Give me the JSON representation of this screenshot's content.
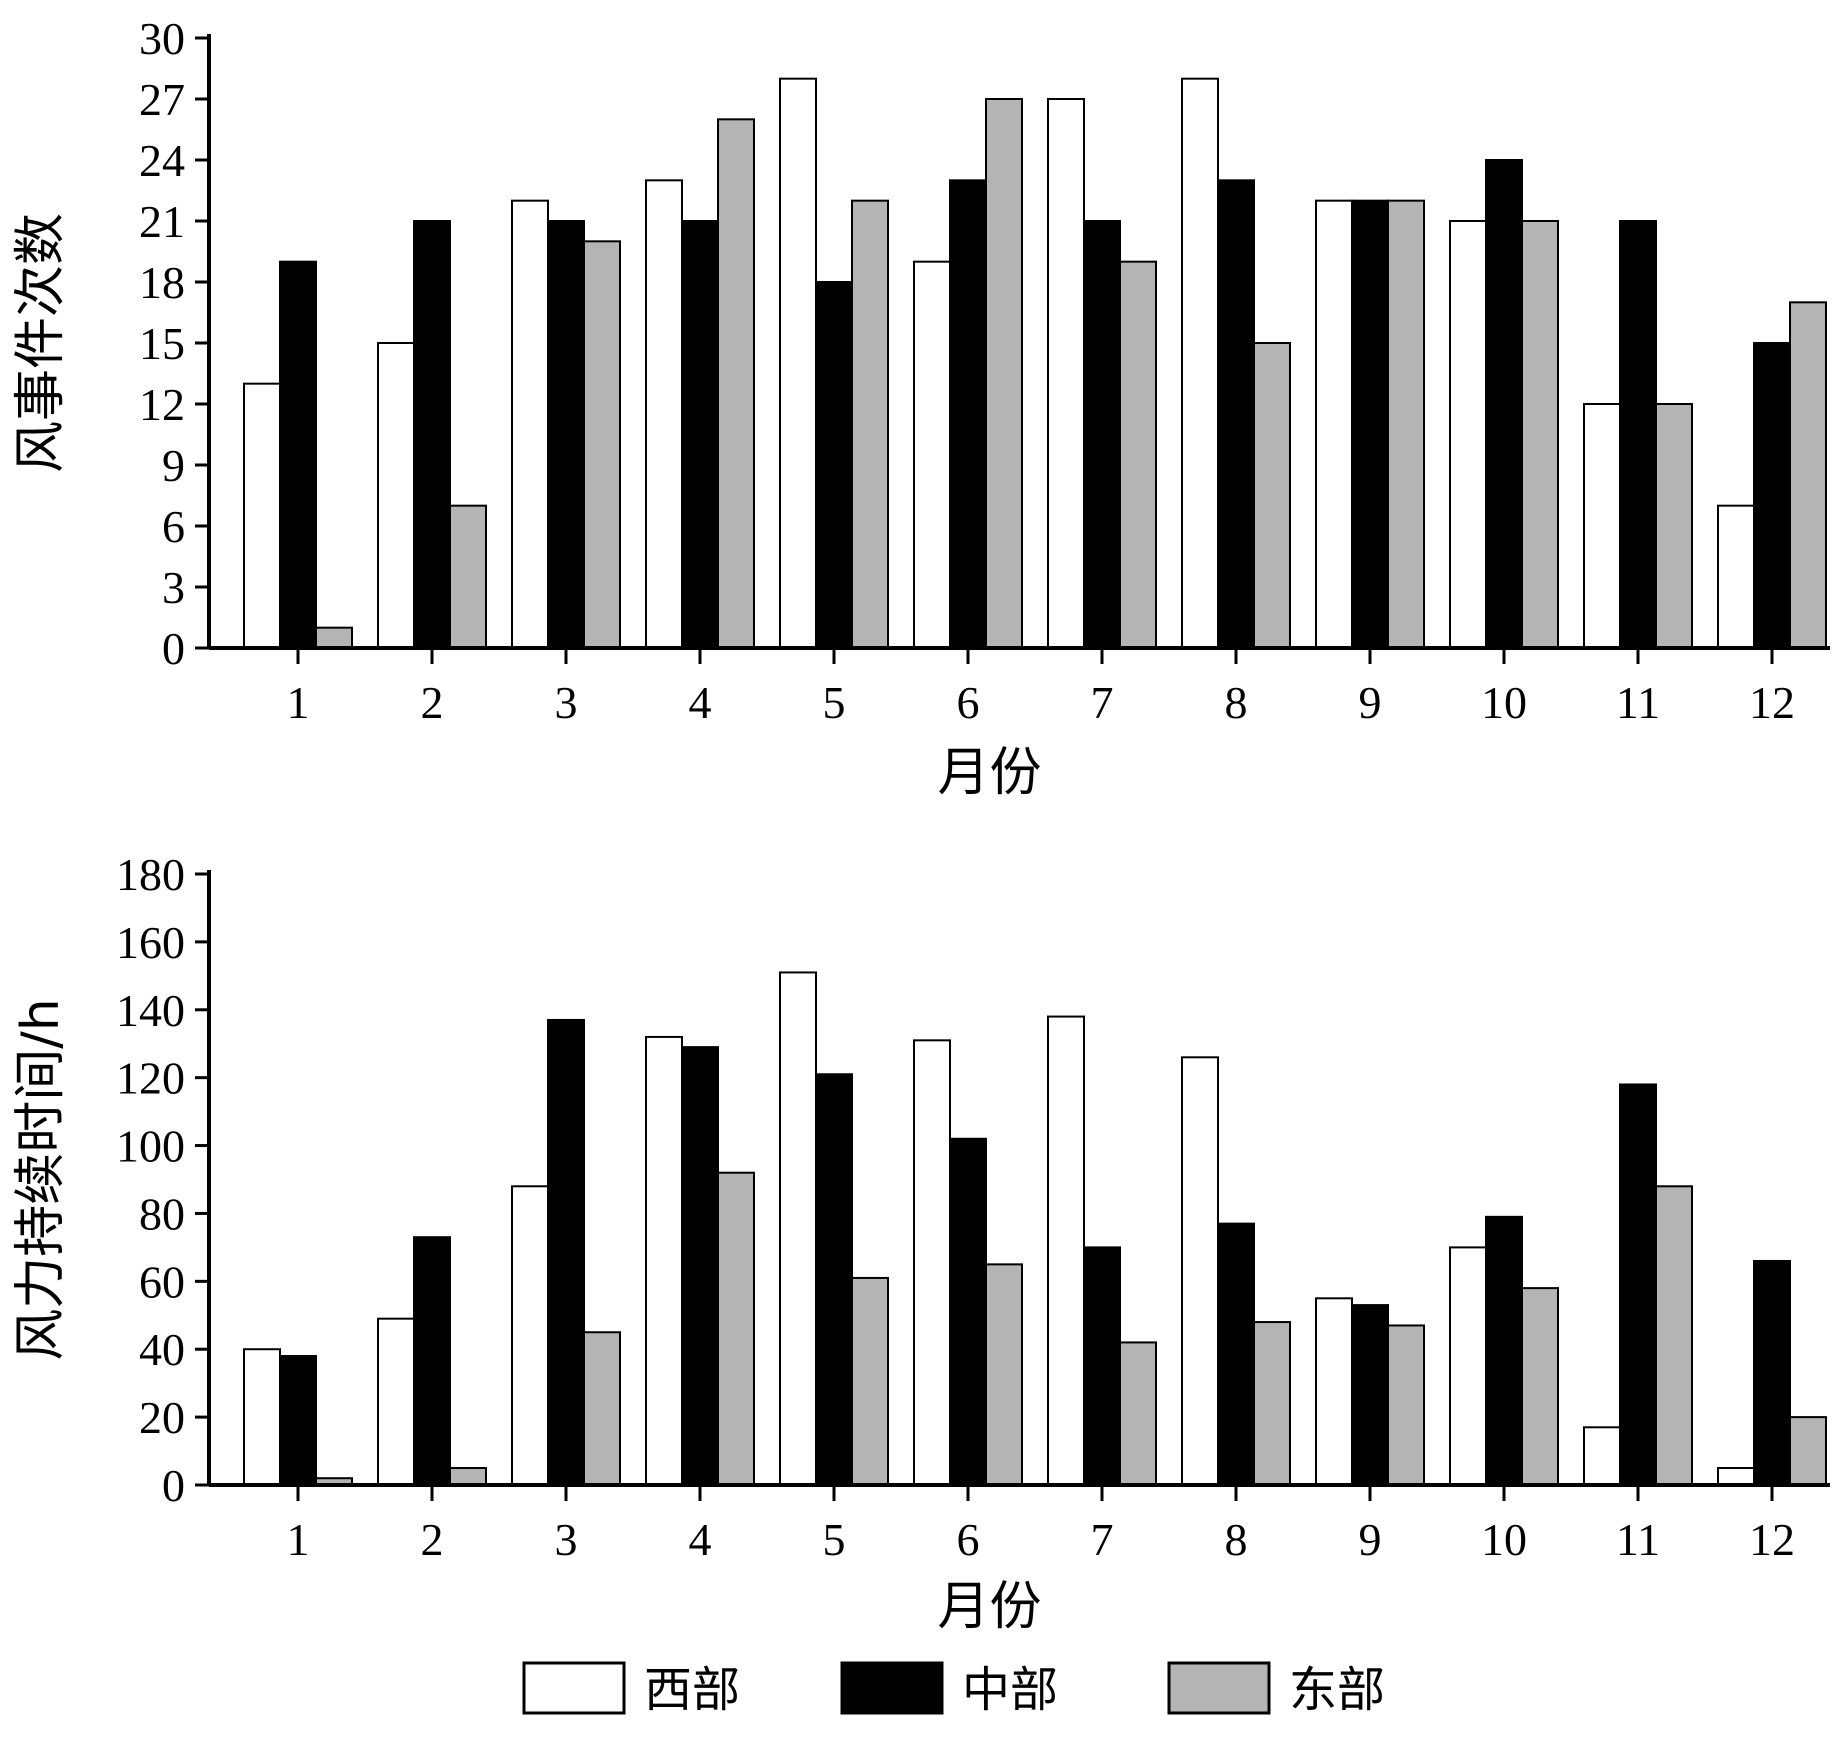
{
  "chart_data": [
    {
      "type": "bar",
      "ylabel": "风事件次数",
      "xlabel": "月份",
      "ylim": [
        0,
        30
      ],
      "yticks": [
        0,
        3,
        6,
        9,
        12,
        15,
        18,
        21,
        24,
        27,
        30
      ],
      "categories": [
        "1",
        "2",
        "3",
        "4",
        "5",
        "6",
        "7",
        "8",
        "9",
        "10",
        "11",
        "12"
      ],
      "series": [
        {
          "name": "西部",
          "color": "#ffffff",
          "values": [
            13,
            15,
            22,
            23,
            28,
            19,
            27,
            28,
            22,
            21,
            12,
            7
          ]
        },
        {
          "name": "中部",
          "color": "#000000",
          "values": [
            19,
            21,
            21,
            21,
            18,
            23,
            21,
            23,
            22,
            24,
            21,
            15
          ]
        },
        {
          "name": "东部",
          "color": "#b4b4b4",
          "values": [
            1,
            7,
            20,
            26,
            22,
            27,
            19,
            15,
            22,
            21,
            12,
            17
          ]
        }
      ]
    },
    {
      "type": "bar",
      "ylabel": "风力持续时间/h",
      "xlabel": "月份",
      "ylim": [
        0,
        180
      ],
      "yticks": [
        0,
        20,
        40,
        60,
        80,
        100,
        120,
        140,
        160,
        180
      ],
      "categories": [
        "1",
        "2",
        "3",
        "4",
        "5",
        "6",
        "7",
        "8",
        "9",
        "10",
        "11",
        "12"
      ],
      "series": [
        {
          "name": "西部",
          "color": "#ffffff",
          "values": [
            40,
            49,
            88,
            132,
            151,
            131,
            138,
            126,
            55,
            70,
            17,
            5
          ]
        },
        {
          "name": "中部",
          "color": "#000000",
          "values": [
            38,
            73,
            137,
            129,
            121,
            102,
            70,
            77,
            53,
            79,
            118,
            66
          ]
        },
        {
          "name": "东部",
          "color": "#b4b4b4",
          "values": [
            2,
            5,
            45,
            92,
            61,
            65,
            42,
            48,
            47,
            58,
            88,
            20
          ]
        }
      ]
    }
  ],
  "legend": {
    "placement": "bottom-center",
    "items": [
      {
        "label": "西部",
        "color": "#ffffff"
      },
      {
        "label": "中部",
        "color": "#000000"
      },
      {
        "label": "东部",
        "color": "#b4b4b4"
      }
    ]
  }
}
